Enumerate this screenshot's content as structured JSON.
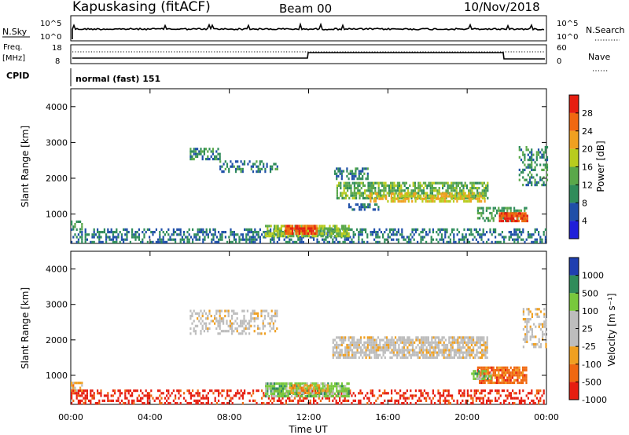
{
  "header": {
    "station": "Kapuskasing (fitACF)",
    "beam": "Beam 00",
    "date": "10/Nov/2018"
  },
  "top_panels": {
    "nsky_label": "N.Sky",
    "nsky_ticks": [
      "10^5",
      "10^0"
    ],
    "nsearch_label": "N.Search",
    "nsearch_ticks": [
      "10^5",
      "10^0"
    ],
    "freq_label": "Freq.",
    "freq_unit": "[MHz]",
    "freq_ticks": [
      "18",
      "8"
    ],
    "nave_label": "Nave",
    "nave_ticks": [
      "60",
      "0"
    ],
    "cpid_label": "CPID",
    "cpid_value": "normal (fast) 151"
  },
  "colors": {
    "power": [
      "#1f1fd9",
      "#1f4fa8",
      "#2f8c5a",
      "#5aa84a",
      "#b8cc1e",
      "#f0a020",
      "#f06810",
      "#e61e10"
    ],
    "velocity": [
      "#e61e10",
      "#f06810",
      "#f0a020",
      "#bdbdbd",
      "#bdbdbd",
      "#78c83c",
      "#2f8c5a",
      "#1f3fb0"
    ]
  },
  "chart_data": [
    {
      "type": "heatmap",
      "name": "power",
      "xlabel": "",
      "ylabel": "Slant Range [km]",
      "ylim": [
        180,
        4500
      ],
      "xlim": [
        0,
        24
      ],
      "yticks": [
        "1000",
        "2000",
        "3000",
        "4000"
      ],
      "colorbar": {
        "label": "Power [dB]",
        "ticks": [
          "4",
          "8",
          "12",
          "16",
          "20",
          "24",
          "28"
        ],
        "range": [
          0,
          32
        ]
      },
      "regions": [
        {
          "t0": 0.0,
          "t1": 24.0,
          "r0": 190,
          "r1": 600,
          "v": 8,
          "density": 0.45
        },
        {
          "t0": 0.0,
          "t1": 0.6,
          "r0": 550,
          "r1": 820,
          "v": 12,
          "density": 0.6
        },
        {
          "t0": 6.0,
          "t1": 7.5,
          "r0": 2500,
          "r1": 2850,
          "v": 10,
          "density": 0.55
        },
        {
          "t0": 7.5,
          "t1": 10.4,
          "r0": 2150,
          "r1": 2500,
          "v": 9,
          "density": 0.45
        },
        {
          "t0": 9.8,
          "t1": 14.0,
          "r0": 400,
          "r1": 700,
          "v": 16,
          "density": 0.75
        },
        {
          "t0": 10.8,
          "t1": 12.4,
          "r0": 450,
          "r1": 700,
          "v": 27,
          "density": 0.9
        },
        {
          "t0": 13.2,
          "t1": 15.0,
          "r0": 2000,
          "r1": 2300,
          "v": 9,
          "density": 0.5
        },
        {
          "t0": 13.4,
          "t1": 21.0,
          "r0": 1450,
          "r1": 1900,
          "v": 14,
          "density": 0.7
        },
        {
          "t0": 15.0,
          "t1": 21.0,
          "r0": 1350,
          "r1": 1600,
          "v": 20,
          "density": 0.55
        },
        {
          "t0": 14.0,
          "t1": 15.5,
          "r0": 1100,
          "r1": 1300,
          "v": 8,
          "density": 0.5
        },
        {
          "t0": 20.5,
          "t1": 23.0,
          "r0": 800,
          "r1": 1200,
          "v": 12,
          "density": 0.6
        },
        {
          "t0": 21.6,
          "t1": 23.0,
          "r0": 800,
          "r1": 1050,
          "v": 28,
          "density": 0.9
        },
        {
          "t0": 22.6,
          "t1": 24.0,
          "r0": 1800,
          "r1": 2900,
          "v": 10,
          "density": 0.4
        }
      ]
    },
    {
      "type": "heatmap",
      "name": "velocity",
      "xlabel": "Time UT",
      "ylabel": "Slant Range [km]",
      "ylim": [
        180,
        4500
      ],
      "xlim": [
        0,
        24
      ],
      "xticks": [
        "00:00",
        "04:00",
        "08:00",
        "12:00",
        "16:00",
        "20:00",
        "00:00"
      ],
      "yticks": [
        "1000",
        "2000",
        "3000",
        "4000"
      ],
      "colorbar": {
        "label": "Velocity [m s⁻¹]",
        "ticks": [
          "1000",
          "500",
          "100",
          "25",
          "-25",
          "-100",
          "-500",
          "-1000"
        ]
      },
      "regions": [
        {
          "t0": 0.0,
          "t1": 24.0,
          "r0": 190,
          "r1": 600,
          "v": 0,
          "density": 0.4
        },
        {
          "t0": 0.0,
          "t1": 0.6,
          "r0": 550,
          "r1": 820,
          "v": 2,
          "density": 0.6
        },
        {
          "t0": 6.0,
          "t1": 10.4,
          "r0": 2200,
          "r1": 2850,
          "v": 3,
          "density": 0.45
        },
        {
          "t0": 9.8,
          "t1": 14.0,
          "r0": 400,
          "r1": 800,
          "v": 5,
          "density": 0.8
        },
        {
          "t0": 11.0,
          "t1": 13.0,
          "r0": 500,
          "r1": 750,
          "v": 2,
          "density": 0.5
        },
        {
          "t0": 13.2,
          "t1": 21.0,
          "r0": 1500,
          "r1": 2100,
          "v": 3,
          "density": 0.75
        },
        {
          "t0": 20.5,
          "t1": 23.0,
          "r0": 800,
          "r1": 1250,
          "v": 1,
          "density": 0.85
        },
        {
          "t0": 20.2,
          "t1": 21.2,
          "r0": 900,
          "r1": 1150,
          "v": 5,
          "density": 0.7
        },
        {
          "t0": 22.8,
          "t1": 24.0,
          "r0": 1800,
          "r1": 2900,
          "v": 3,
          "density": 0.4
        }
      ]
    }
  ]
}
